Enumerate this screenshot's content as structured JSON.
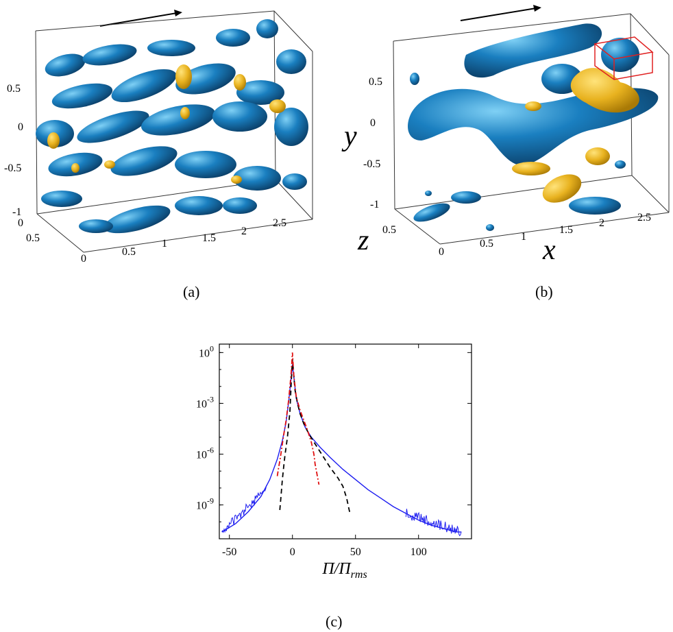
{
  "panels": {
    "a": {
      "caption": "(a)",
      "y_ticks": [
        "0.5",
        "0",
        "-0.5",
        "-1"
      ],
      "x_ticks": [
        "0",
        "0.5",
        "1",
        "1.5",
        "2",
        "2.5"
      ],
      "z_ticks": [
        "0",
        "0.5",
        "0"
      ],
      "colors": {
        "blob": "#1a7fc0",
        "blob_dark": "#0d4f80",
        "core": "#e8b21f"
      }
    },
    "b": {
      "caption": "(b)",
      "y_ticks": [
        "0.5",
        "0",
        "-0.5",
        "-1"
      ],
      "x_ticks": [
        "0",
        "0.5",
        "1",
        "1.5",
        "2",
        "2.5"
      ],
      "z_ticks": [
        "0.5"
      ],
      "xlabel": "x",
      "ylabel": "y",
      "zlabel": "z",
      "colors": {
        "blob": "#1a7fc0",
        "core": "#e8b21f",
        "highlight_box": "#e02020"
      }
    },
    "c": {
      "caption": "(c)",
      "xlabel": "Π/Π_rms",
      "x_ticks": [
        "-50",
        "0",
        "50",
        "100"
      ],
      "y_tick_base": "10",
      "y_tick_exponents": [
        "0",
        "-3",
        "-6",
        "-9"
      ]
    }
  },
  "chart_data": {
    "type": "line",
    "title": "",
    "xlabel": "Π/Π_rms",
    "ylabel": "",
    "xlim": [
      -58,
      142
    ],
    "ylim_log10": [
      -11,
      0.5
    ],
    "yscale": "log",
    "series": [
      {
        "style": "solid",
        "color": "#1c1cf0",
        "x": [
          -56,
          -45,
          -35,
          -25,
          -18,
          -12,
          -8,
          -5,
          -3,
          -1,
          0,
          1,
          3,
          6,
          10,
          15,
          22,
          30,
          40,
          50,
          60,
          70,
          80,
          90,
          100,
          110,
          120,
          130,
          134
        ],
        "log10_y": [
          -10.6,
          -10.1,
          -9.4,
          -8.5,
          -7.5,
          -6.3,
          -5.2,
          -4.1,
          -2.9,
          -1.5,
          -0.7,
          -1.4,
          -2.7,
          -3.6,
          -4.4,
          -5.0,
          -5.6,
          -6.2,
          -6.9,
          -7.5,
          -8.1,
          -8.6,
          -9.1,
          -9.5,
          -9.9,
          -10.2,
          -10.4,
          -10.6,
          -10.6
        ]
      },
      {
        "style": "dashed",
        "color": "#000000",
        "x": [
          -10,
          -9,
          -8,
          -7,
          -6,
          -4,
          -2,
          -1,
          0,
          1,
          2,
          4,
          6,
          9,
          13,
          18,
          24,
          30,
          36,
          40,
          43,
          45,
          46
        ],
        "log10_y": [
          -9.3,
          -8.4,
          -7.5,
          -6.8,
          -6.1,
          -5.0,
          -3.5,
          -1.8,
          -0.4,
          -1.3,
          -2.2,
          -3.0,
          -3.6,
          -4.2,
          -4.8,
          -5.4,
          -6.1,
          -6.8,
          -7.4,
          -7.9,
          -8.6,
          -9.3,
          -9.6
        ]
      },
      {
        "style": "dashdot",
        "color": "#e01010",
        "x": [
          -12,
          -11,
          -10,
          -9,
          -8,
          -7,
          -5,
          -3,
          -1,
          0,
          1,
          3,
          6,
          9,
          12,
          15,
          17,
          18,
          19,
          20,
          21
        ],
        "log10_y": [
          -7.3,
          -6.8,
          -6.4,
          -5.9,
          -5.4,
          -4.9,
          -4.0,
          -2.8,
          -1.2,
          0.0,
          -1.3,
          -2.6,
          -3.4,
          -4.0,
          -4.6,
          -5.3,
          -6.0,
          -6.6,
          -7.0,
          -7.4,
          -7.8
        ]
      }
    ]
  }
}
